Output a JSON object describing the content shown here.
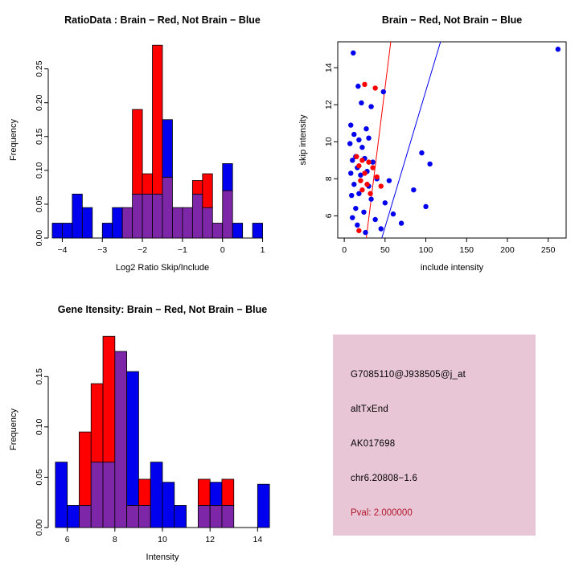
{
  "page": {
    "background": "#ffffff"
  },
  "colors": {
    "red": "#ff0000",
    "blue": "#0000ee",
    "overlap": "#7d26a8",
    "axis": "#000000",
    "info_bg": "#e9c6d6",
    "pval_text": "#b0172b"
  },
  "info_box": {
    "lines": [
      "G7085110@J938505@j_at",
      "altTxEnd",
      "AK017698",
      "chr6.20808−1.6"
    ],
    "pval_line": "Pval: 2.000000"
  },
  "chart_data": [
    {
      "id": "ratio-histogram",
      "type": "bar",
      "subtype": "overlapping-histogram",
      "title": "RatioData : Brain − Red, Not Brain − Blue",
      "xlabel": "Log2 Ratio Skip/Include",
      "ylabel": "Frequency",
      "xlim": [
        -4.35,
        1.35
      ],
      "ylim": [
        0,
        0.29
      ],
      "xticks": [
        -4,
        -3,
        -2,
        -1,
        0,
        1
      ],
      "xtick_labels": [
        "−4",
        "−3",
        "−2",
        "−1",
        "0",
        "1"
      ],
      "yticks": [
        0,
        0.05,
        0.1,
        0.15,
        0.2,
        0.25
      ],
      "ytick_labels": [
        "0.00",
        "0.05",
        "0.10",
        "0.15",
        "0.20",
        "0.25"
      ],
      "bin_width": 0.25,
      "bins": [
        {
          "x": -4.25,
          "red": 0,
          "blue": 0.022
        },
        {
          "x": -4.0,
          "red": 0,
          "blue": 0.022
        },
        {
          "x": -3.75,
          "red": 0,
          "blue": 0.065
        },
        {
          "x": -3.5,
          "red": 0,
          "blue": 0.045
        },
        {
          "x": -3.25,
          "red": 0,
          "blue": 0
        },
        {
          "x": -3.0,
          "red": 0,
          "blue": 0.022
        },
        {
          "x": -2.75,
          "red": 0,
          "blue": 0.045
        },
        {
          "x": -2.5,
          "red": 0.045,
          "blue": 0.045
        },
        {
          "x": -2.25,
          "red": 0.19,
          "blue": 0.065
        },
        {
          "x": -2.0,
          "red": 0.095,
          "blue": 0.065
        },
        {
          "x": -1.75,
          "red": 0.285,
          "blue": 0.065
        },
        {
          "x": -1.5,
          "red": 0.09,
          "blue": 0.175
        },
        {
          "x": -1.25,
          "red": 0.045,
          "blue": 0.045
        },
        {
          "x": -1.0,
          "red": 0.045,
          "blue": 0.045
        },
        {
          "x": -0.75,
          "red": 0.085,
          "blue": 0.065
        },
        {
          "x": -0.5,
          "red": 0.095,
          "blue": 0.045
        },
        {
          "x": -0.25,
          "red": 0.022,
          "blue": 0.022
        },
        {
          "x": 0.0,
          "red": 0.07,
          "blue": 0.11
        },
        {
          "x": 0.25,
          "red": 0,
          "blue": 0.022
        },
        {
          "x": 0.5,
          "red": 0,
          "blue": 0
        },
        {
          "x": 0.75,
          "red": 0,
          "blue": 0.022
        }
      ]
    },
    {
      "id": "intensity-scatter",
      "type": "scatter",
      "title": "Brain − Red, Not Brain − Blue",
      "xlabel": "include intensity",
      "ylabel": "skip intensity",
      "xlim": [
        -8,
        272
      ],
      "ylim": [
        4.8,
        15.4
      ],
      "xticks": [
        0,
        50,
        100,
        150,
        200,
        250
      ],
      "xtick_labels": [
        "0",
        "50",
        "100",
        "150",
        "200",
        "250"
      ],
      "yticks": [
        6,
        8,
        10,
        12,
        14
      ],
      "ytick_labels": [
        "6",
        "8",
        "10",
        "12",
        "14"
      ],
      "blue_points": [
        [
          11,
          14.8
        ],
        [
          262,
          15.0
        ],
        [
          17,
          13.0
        ],
        [
          48,
          12.7
        ],
        [
          21,
          12.1
        ],
        [
          33,
          11.9
        ],
        [
          8,
          10.9
        ],
        [
          27,
          10.7
        ],
        [
          12,
          10.4
        ],
        [
          30,
          10.2
        ],
        [
          18,
          10.1
        ],
        [
          7,
          9.9
        ],
        [
          22,
          9.7
        ],
        [
          95,
          9.4
        ],
        [
          14,
          9.2
        ],
        [
          25,
          9.1
        ],
        [
          10,
          9.0
        ],
        [
          35,
          8.9
        ],
        [
          105,
          8.8
        ],
        [
          16,
          8.6
        ],
        [
          28,
          8.4
        ],
        [
          8,
          8.3
        ],
        [
          20,
          8.2
        ],
        [
          40,
          8.0
        ],
        [
          55,
          7.9
        ],
        [
          12,
          7.7
        ],
        [
          30,
          7.6
        ],
        [
          85,
          7.4
        ],
        [
          18,
          7.2
        ],
        [
          9,
          7.1
        ],
        [
          33,
          6.9
        ],
        [
          50,
          6.7
        ],
        [
          100,
          6.5
        ],
        [
          14,
          6.4
        ],
        [
          24,
          6.2
        ],
        [
          60,
          6.1
        ],
        [
          10,
          5.9
        ],
        [
          38,
          5.8
        ],
        [
          70,
          5.6
        ],
        [
          16,
          5.5
        ],
        [
          45,
          5.3
        ],
        [
          26,
          5.1
        ]
      ],
      "red_points": [
        [
          25,
          13.1
        ],
        [
          38,
          12.9
        ],
        [
          15,
          9.2
        ],
        [
          22,
          9.0
        ],
        [
          30,
          8.9
        ],
        [
          18,
          8.7
        ],
        [
          35,
          8.6
        ],
        [
          25,
          8.3
        ],
        [
          40,
          8.1
        ],
        [
          20,
          7.9
        ],
        [
          28,
          7.7
        ],
        [
          45,
          7.6
        ],
        [
          22,
          7.4
        ],
        [
          32,
          7.2
        ],
        [
          18,
          5.2
        ]
      ],
      "red_line": {
        "x1": 27,
        "y1": 4.8,
        "x2": 57,
        "y2": 15.4
      },
      "blue_line": {
        "x1": 46,
        "y1": 4.8,
        "x2": 118,
        "y2": 15.4
      }
    },
    {
      "id": "gene-intensity-histogram",
      "type": "bar",
      "subtype": "overlapping-histogram",
      "title": "Gene Itensity: Brain − Red, Not Brain − Blue",
      "xlabel": "Intensity",
      "ylabel": "Frequency",
      "xlim": [
        5.2,
        14.8
      ],
      "ylim": [
        0,
        0.195
      ],
      "xticks": [
        6,
        8,
        10,
        12,
        14
      ],
      "xtick_labels": [
        "6",
        "8",
        "10",
        "12",
        "14"
      ],
      "yticks": [
        0,
        0.05,
        0.1,
        0.15
      ],
      "ytick_labels": [
        "0.00",
        "0.05",
        "0.10",
        "0.15"
      ],
      "bin_width": 0.5,
      "bins": [
        {
          "x": 5.5,
          "red": 0,
          "blue": 0.065
        },
        {
          "x": 6.0,
          "red": 0,
          "blue": 0.022
        },
        {
          "x": 6.5,
          "red": 0.095,
          "blue": 0.022
        },
        {
          "x": 7.0,
          "red": 0.143,
          "blue": 0.065
        },
        {
          "x": 7.5,
          "red": 0.19,
          "blue": 0.065
        },
        {
          "x": 8.0,
          "red": 0.175,
          "blue": 0.175
        },
        {
          "x": 8.5,
          "red": 0.022,
          "blue": 0.155
        },
        {
          "x": 9.0,
          "red": 0.048,
          "blue": 0.022
        },
        {
          "x": 9.5,
          "red": 0,
          "blue": 0.065
        },
        {
          "x": 10.0,
          "red": 0,
          "blue": 0.045
        },
        {
          "x": 10.5,
          "red": 0,
          "blue": 0.022
        },
        {
          "x": 11.0,
          "red": 0,
          "blue": 0
        },
        {
          "x": 11.5,
          "red": 0.048,
          "blue": 0.022
        },
        {
          "x": 12.0,
          "red": 0.022,
          "blue": 0.045
        },
        {
          "x": 12.5,
          "red": 0.048,
          "blue": 0.022
        },
        {
          "x": 13.0,
          "red": 0,
          "blue": 0
        },
        {
          "x": 13.5,
          "red": 0,
          "blue": 0
        },
        {
          "x": 14.0,
          "red": 0,
          "blue": 0.043
        }
      ]
    }
  ]
}
